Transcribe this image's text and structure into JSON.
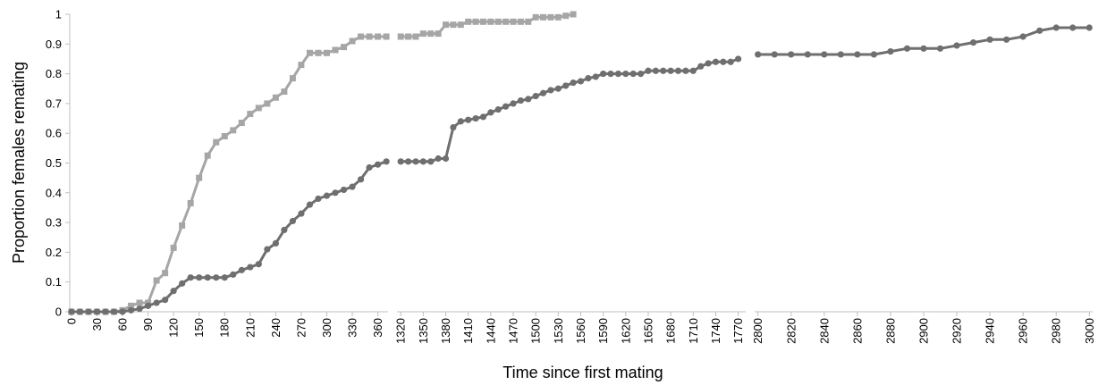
{
  "chart_data": {
    "type": "line",
    "title": "",
    "xlabel": "Time since first mating",
    "ylabel": "Proportion females remating",
    "ylim": [
      0,
      1
    ],
    "yticks": [
      "0",
      "0.1",
      "0.2",
      "0.3",
      "0.4",
      "0.5",
      "0.6",
      "0.7",
      "0.8",
      "0.9",
      "1"
    ],
    "grid": false,
    "legend": "none",
    "colors": {
      "light_series": "#a6a6a6",
      "dark_series": "#6f6f6f",
      "axis": "#bfbfbf"
    },
    "panels": [
      {
        "xlim": [
          -2,
          372
        ],
        "xticks": [
          "0",
          "30",
          "60",
          "90",
          "120",
          "150",
          "180",
          "210",
          "240",
          "270",
          "300",
          "330",
          "360"
        ],
        "series": [
          {
            "marker": "square",
            "color": "#a6a6a6",
            "x": [
              0,
              10,
              20,
              30,
              40,
              50,
              60,
              70,
              80,
              90,
              100,
              110,
              120,
              130,
              140,
              150,
              160,
              170,
              180,
              190,
              200,
              210,
              220,
              230,
              240,
              250,
              260,
              270,
              280,
              290,
              300,
              310,
              320,
              330,
              340,
              350,
              360,
              370
            ],
            "y": [
              0,
              0,
              0,
              0,
              0,
              0,
              0.005,
              0.02,
              0.03,
              0.03,
              0.105,
              0.13,
              0.215,
              0.29,
              0.365,
              0.45,
              0.525,
              0.57,
              0.59,
              0.61,
              0.635,
              0.665,
              0.685,
              0.7,
              0.72,
              0.74,
              0.785,
              0.83,
              0.87,
              0.87,
              0.87,
              0.88,
              0.89,
              0.91,
              0.925,
              0.925,
              0.925,
              0.925
            ]
          },
          {
            "marker": "circle",
            "color": "#6f6f6f",
            "x": [
              0,
              10,
              20,
              30,
              40,
              50,
              60,
              70,
              80,
              90,
              100,
              110,
              120,
              130,
              140,
              150,
              160,
              170,
              180,
              190,
              200,
              210,
              220,
              230,
              240,
              250,
              260,
              270,
              280,
              290,
              300,
              310,
              320,
              330,
              340,
              350,
              360,
              370
            ],
            "y": [
              0,
              0,
              0,
              0,
              0,
              0,
              0,
              0.005,
              0.01,
              0.02,
              0.03,
              0.04,
              0.07,
              0.095,
              0.115,
              0.115,
              0.115,
              0.115,
              0.115,
              0.125,
              0.14,
              0.15,
              0.16,
              0.21,
              0.23,
              0.275,
              0.305,
              0.33,
              0.36,
              0.38,
              0.39,
              0.4,
              0.41,
              0.42,
              0.445,
              0.485,
              0.495,
              0.505
            ]
          }
        ]
      },
      {
        "xlim": [
          1315,
          1780
        ],
        "xticks": [
          "1320",
          "1350",
          "1380",
          "1410",
          "1440",
          "1470",
          "1500",
          "1530",
          "1560",
          "1590",
          "1620",
          "1650",
          "1680",
          "1710",
          "1740",
          "1770"
        ],
        "series": [
          {
            "marker": "square",
            "color": "#a6a6a6",
            "x": [
              1320,
              1330,
              1340,
              1350,
              1360,
              1370,
              1380,
              1390,
              1400,
              1410,
              1420,
              1430,
              1440,
              1450,
              1460,
              1470,
              1480,
              1490,
              1500,
              1510,
              1520,
              1530,
              1540,
              1550
            ],
            "y": [
              0.925,
              0.925,
              0.925,
              0.935,
              0.935,
              0.935,
              0.965,
              0.965,
              0.965,
              0.975,
              0.975,
              0.975,
              0.975,
              0.975,
              0.975,
              0.975,
              0.975,
              0.975,
              0.99,
              0.99,
              0.99,
              0.99,
              0.995,
              1.0
            ]
          },
          {
            "marker": "circle",
            "color": "#6f6f6f",
            "x": [
              1320,
              1330,
              1340,
              1350,
              1360,
              1370,
              1380,
              1390,
              1400,
              1410,
              1420,
              1430,
              1440,
              1450,
              1460,
              1470,
              1480,
              1490,
              1500,
              1510,
              1520,
              1530,
              1540,
              1550,
              1560,
              1570,
              1580,
              1590,
              1600,
              1610,
              1620,
              1630,
              1640,
              1650,
              1660,
              1670,
              1680,
              1690,
              1700,
              1710,
              1720,
              1730,
              1740,
              1750,
              1760,
              1770
            ],
            "y": [
              0.505,
              0.505,
              0.505,
              0.505,
              0.505,
              0.515,
              0.515,
              0.62,
              0.64,
              0.645,
              0.65,
              0.655,
              0.67,
              0.68,
              0.69,
              0.7,
              0.71,
              0.715,
              0.725,
              0.735,
              0.745,
              0.75,
              0.76,
              0.77,
              0.775,
              0.785,
              0.79,
              0.8,
              0.8,
              0.8,
              0.8,
              0.8,
              0.8,
              0.81,
              0.81,
              0.81,
              0.81,
              0.81,
              0.81,
              0.81,
              0.825,
              0.835,
              0.84,
              0.84,
              0.84,
              0.85
            ]
          }
        ]
      },
      {
        "xlim": [
          2798,
          3002
        ],
        "xticks": [
          "2800",
          "2820",
          "2840",
          "2860",
          "2880",
          "2900",
          "2920",
          "2940",
          "2960",
          "2980",
          "3000"
        ],
        "series": [
          {
            "marker": "circle",
            "color": "#6f6f6f",
            "x": [
              2800,
              2810,
              2820,
              2830,
              2840,
              2850,
              2860,
              2870,
              2880,
              2890,
              2900,
              2910,
              2920,
              2930,
              2940,
              2950,
              2960,
              2970,
              2980,
              2990,
              3000
            ],
            "y": [
              0.865,
              0.865,
              0.865,
              0.865,
              0.865,
              0.865,
              0.865,
              0.865,
              0.875,
              0.885,
              0.885,
              0.885,
              0.895,
              0.905,
              0.915,
              0.915,
              0.925,
              0.945,
              0.955,
              0.955,
              0.955
            ]
          }
        ]
      }
    ]
  }
}
